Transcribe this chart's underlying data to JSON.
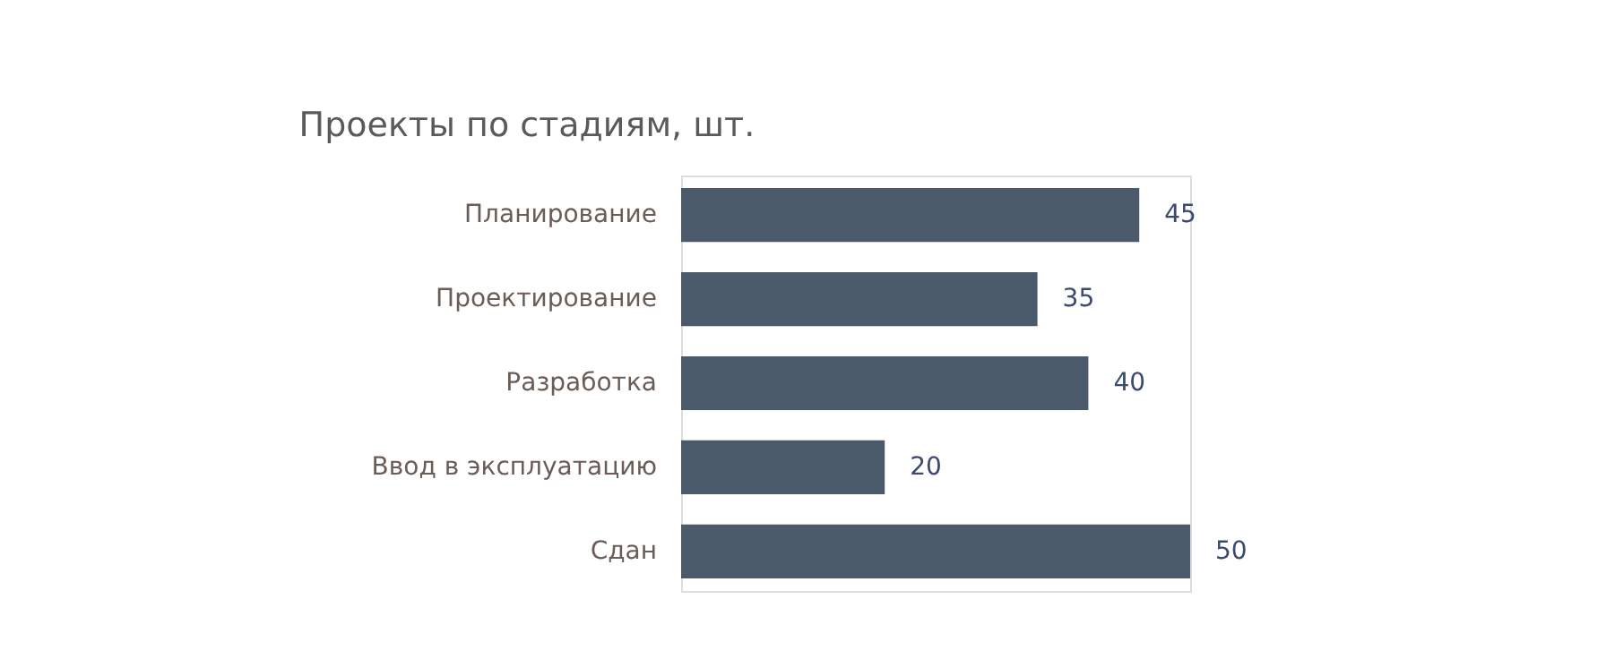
{
  "chart_data": {
    "type": "bar",
    "orientation": "horizontal",
    "title": "Проекты по стадиям, шт.",
    "categories": [
      "Планирование",
      "Проектирование",
      "Разработка",
      "Ввод в эксплуатацию",
      "Сдан"
    ],
    "values": [
      45,
      35,
      40,
      20,
      50
    ],
    "color": "#4a5a6b",
    "data_labels": true
  }
}
